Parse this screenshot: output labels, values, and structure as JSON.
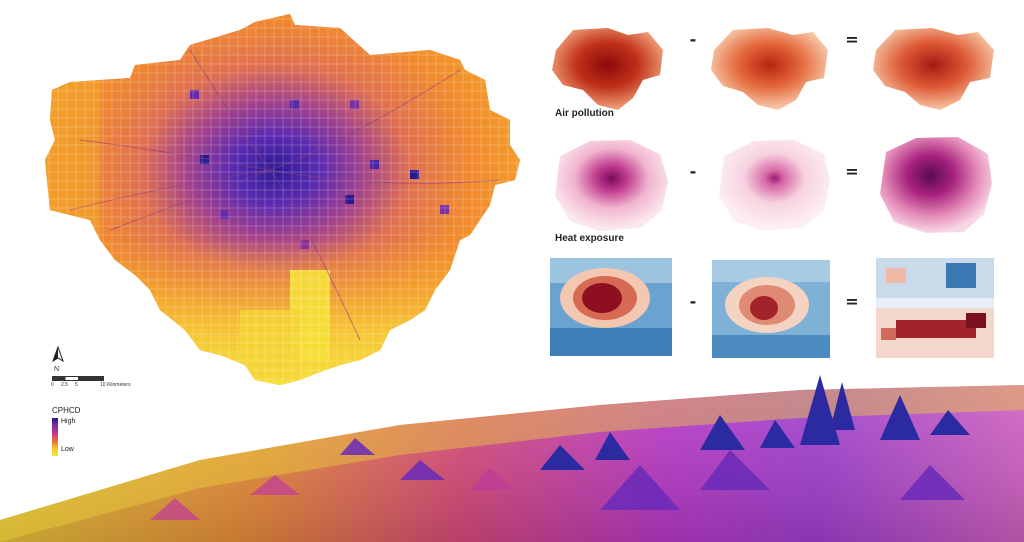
{
  "panels": {
    "air_label": "Air pollution",
    "heat_label": "Heat exposure",
    "minus_symbol": "-",
    "equals_symbol": "="
  },
  "scale_bar": {
    "north_label": "N",
    "ticks": [
      "0",
      "2.5",
      "5",
      "10 Kilometers"
    ]
  },
  "legend": {
    "title": "CPHCD",
    "high_label": "High",
    "low_label": "Low",
    "colors": [
      "#1f1a8c",
      "#7e2aa6",
      "#c2378f",
      "#ec6a3d",
      "#f7c531",
      "#f4e63a"
    ]
  },
  "map_colors": {
    "base": "#f18a2e",
    "center_deep": "#3b23a0",
    "mid": "#d85a6a",
    "south_yellow": "#f6c936"
  }
}
